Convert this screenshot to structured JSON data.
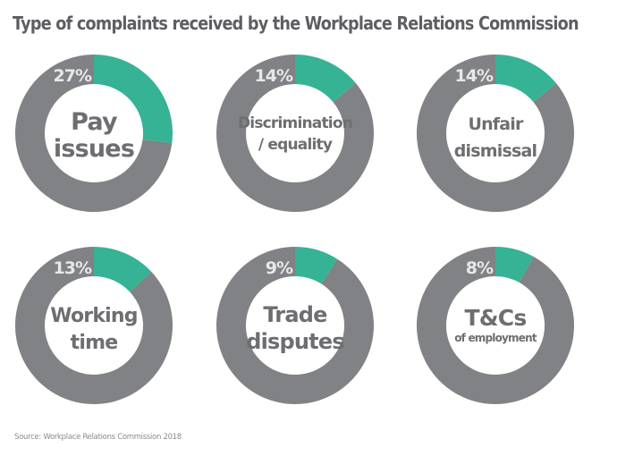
{
  "title": "Type of complaints received by the Workplace Relations Commission",
  "source": "Source: Workplace Relations Commission 2018",
  "colors": {
    "highlight": "#35B394",
    "remainder": "#808285",
    "label": "#6d6e71",
    "percent_label": "#e8e8e8"
  },
  "donuts": [
    {
      "percent_label": "27%",
      "line1": "Pay",
      "line2": "issues"
    },
    {
      "percent_label": "14%",
      "line1": "Discrimination",
      "line2": "/ equality"
    },
    {
      "percent_label": "14%",
      "line1": "Unfair",
      "line2": "dismissal"
    },
    {
      "percent_label": "13%",
      "line1": "Working",
      "line2": "time"
    },
    {
      "percent_label": "9%",
      "line1": "Trade",
      "line2": "disputes"
    },
    {
      "percent_label": "8%",
      "line1": "T&Cs",
      "line2": "of employment"
    }
  ],
  "chart_data": {
    "type": "pie",
    "title": "Type of complaints received by the Workplace Relations Commission",
    "subtype": "donut-small-multiples",
    "categories": [
      "Pay issues",
      "Discrimination / equality",
      "Unfair dismissal",
      "Working time",
      "Trade disputes",
      "T&Cs of employment"
    ],
    "values": [
      27,
      14,
      14,
      13,
      9,
      8
    ],
    "unit": "%",
    "source": "Source: Workplace Relations Commission 2018",
    "layout": {
      "rows": 2,
      "cols": 3
    }
  }
}
